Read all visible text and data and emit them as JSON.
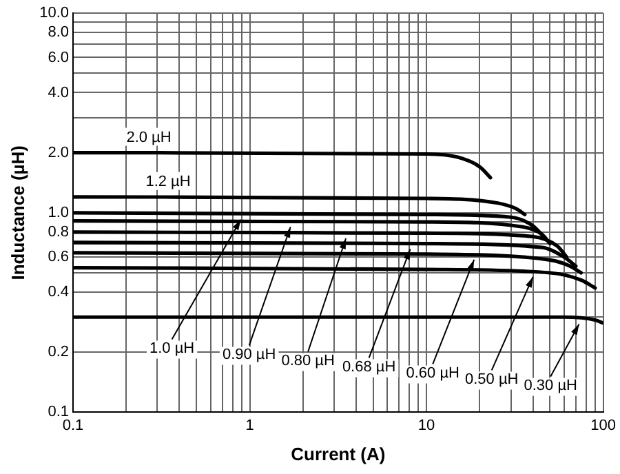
{
  "chart_data": {
    "type": "line",
    "xlabel": "Current (A)",
    "ylabel": "Inductance (µH)",
    "log": "xy",
    "grid": true,
    "legend": false,
    "marker": "none",
    "line_style": "solid",
    "xlim": [
      0.1,
      100
    ],
    "ylim": [
      0.1,
      10
    ],
    "xticks": [
      0.1,
      {
        "value": 0.2,
        "label": null
      },
      {
        "value": 0.3,
        "label": null
      },
      {
        "value": 0.4,
        "label": null
      },
      {
        "value": 0.5,
        "label": null
      },
      {
        "value": 0.6,
        "label": null
      },
      {
        "value": 0.7,
        "label": null
      },
      {
        "value": 0.8,
        "label": null
      },
      {
        "value": 0.9,
        "label": null
      },
      1,
      {
        "value": 2,
        "label": null
      },
      {
        "value": 3,
        "label": null
      },
      {
        "value": 4,
        "label": null
      },
      {
        "value": 5,
        "label": null
      },
      {
        "value": 6,
        "label": null
      },
      {
        "value": 7,
        "label": null
      },
      {
        "value": 8,
        "label": null
      },
      {
        "value": 9,
        "label": null
      },
      10,
      {
        "value": 20,
        "label": null
      },
      {
        "value": 30,
        "label": null
      },
      {
        "value": 40,
        "label": null
      },
      {
        "value": 50,
        "label": null
      },
      {
        "value": 60,
        "label": null
      },
      {
        "value": 70,
        "label": null
      },
      {
        "value": 80,
        "label": null
      },
      {
        "value": 90,
        "label": null
      },
      100
    ],
    "yticks": [
      0.1,
      0.2,
      {
        "value": 0.3,
        "label": null
      },
      0.4,
      {
        "value": 0.5,
        "label": null
      },
      0.6,
      {
        "value": 0.7,
        "label": null
      },
      0.8,
      {
        "value": 0.9,
        "label": null
      },
      {
        "value": 1,
        "label": "1.0"
      },
      {
        "value": 2,
        "label": "2.0"
      },
      {
        "value": 3,
        "label": null
      },
      {
        "value": 4,
        "label": "4.0"
      },
      {
        "value": 5,
        "label": null
      },
      {
        "value": 6,
        "label": "6.0"
      },
      {
        "value": 7,
        "label": null
      },
      {
        "value": 8,
        "label": "8.0"
      },
      {
        "value": 9,
        "label": null
      },
      {
        "value": 10,
        "label": "10.0"
      }
    ],
    "series": [
      {
        "name": "2.0 µH",
        "color": "#000000",
        "x": [
          0.1,
          10,
          15,
          20,
          23
        ],
        "values": [
          2.0,
          1.97,
          1.9,
          1.7,
          1.5
        ]
      },
      {
        "name": "1.2 µH",
        "color": "#000000",
        "x": [
          0.1,
          10,
          25,
          32,
          36
        ],
        "values": [
          1.2,
          1.18,
          1.12,
          1.05,
          0.98
        ]
      },
      {
        "color": "#000000",
        "x": [
          0.1,
          10,
          30,
          40,
          46
        ],
        "values": [
          1.0,
          0.98,
          0.95,
          0.86,
          0.76
        ]
      },
      {
        "color": "#000000",
        "x": [
          0.1,
          10,
          35,
          45,
          50
        ],
        "values": [
          0.91,
          0.9,
          0.85,
          0.78,
          0.7
        ]
      },
      {
        "color": "#000000",
        "x": [
          0.1,
          10,
          40,
          55,
          62
        ],
        "values": [
          0.8,
          0.79,
          0.76,
          0.68,
          0.6
        ]
      },
      {
        "color": "#000000",
        "x": [
          0.1,
          10,
          45,
          60,
          70
        ],
        "values": [
          0.71,
          0.7,
          0.67,
          0.6,
          0.54
        ]
      },
      {
        "color": "#000000",
        "x": [
          0.1,
          10,
          50,
          65,
          75
        ],
        "values": [
          0.63,
          0.62,
          0.58,
          0.54,
          0.5
        ]
      },
      {
        "color": "#000000",
        "x": [
          0.1,
          10,
          50,
          75,
          90
        ],
        "values": [
          0.53,
          0.52,
          0.5,
          0.46,
          0.42
        ]
      },
      {
        "color": "#000000",
        "x": [
          0.1,
          10,
          60,
          90,
          100
        ],
        "values": [
          0.3,
          0.3,
          0.3,
          0.29,
          0.28
        ]
      }
    ],
    "annotations": [
      {
        "text": "1.0 µH",
        "x": 0.89,
        "y": 0.97
      },
      {
        "text": "0.90 µH",
        "x": 1.7,
        "y": 0.89
      },
      {
        "text": "0.80 µH",
        "x": 3.5,
        "y": 0.78
      },
      {
        "text": "0.68 µH",
        "x": 8.1,
        "y": 0.69
      },
      {
        "text": "0.60 µH",
        "x": 18.6,
        "y": 0.61
      },
      {
        "text": "0.50 µH",
        "x": 40,
        "y": 0.5
      },
      {
        "text": "0.30 µH",
        "x": 73,
        "y": 0.29
      }
    ]
  }
}
